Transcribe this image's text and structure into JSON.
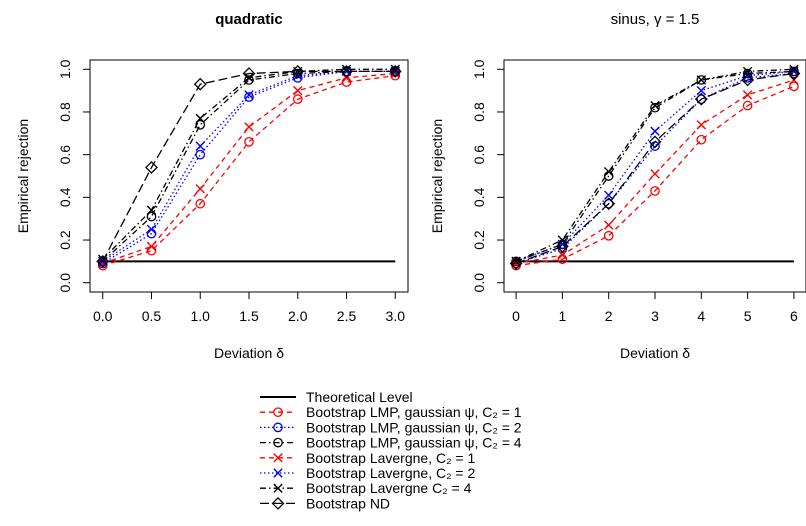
{
  "chart_data": [
    {
      "type": "line",
      "title": "quadratic",
      "xlabel": "Deviation δ",
      "ylabel": "Empirical rejection",
      "xlim": [
        0,
        3
      ],
      "ylim": [
        0,
        1
      ],
      "xticks": [
        "0.0",
        "0.5",
        "1.0",
        "1.5",
        "2.0",
        "2.5",
        "3.0"
      ],
      "yticks": [
        "0.0",
        "0.2",
        "0.4",
        "0.6",
        "0.8",
        "1.0"
      ],
      "x": [
        0,
        0.5,
        1,
        1.5,
        2,
        2.5,
        3
      ],
      "series": [
        {
          "key": "theo",
          "values": [
            0.1,
            0.1,
            0.1,
            0.1,
            0.1,
            0.1,
            0.1
          ]
        },
        {
          "key": "lmp1",
          "values": [
            0.08,
            0.15,
            0.37,
            0.66,
            0.86,
            0.94,
            0.97
          ]
        },
        {
          "key": "lmp2",
          "values": [
            0.09,
            0.23,
            0.6,
            0.87,
            0.96,
            0.99,
            0.99
          ]
        },
        {
          "key": "lmp4",
          "values": [
            0.1,
            0.31,
            0.74,
            0.95,
            0.98,
            0.99,
            0.99
          ]
        },
        {
          "key": "lav1",
          "values": [
            0.09,
            0.17,
            0.44,
            0.73,
            0.9,
            0.96,
            0.98
          ]
        },
        {
          "key": "lav2",
          "values": [
            0.1,
            0.25,
            0.64,
            0.88,
            0.97,
            0.99,
            0.99
          ]
        },
        {
          "key": "lav4",
          "values": [
            0.11,
            0.34,
            0.77,
            0.96,
            0.99,
            1.0,
            1.0
          ]
        },
        {
          "key": "nd",
          "values": [
            0.1,
            0.54,
            0.93,
            0.98,
            0.99,
            0.99,
            0.99
          ]
        }
      ]
    },
    {
      "type": "line",
      "title": "sinus, γ = 1.5",
      "xlabel": "Deviation δ",
      "ylabel": "Empirical rejection",
      "xlim": [
        0,
        6
      ],
      "ylim": [
        0,
        1
      ],
      "xticks": [
        "0",
        "1",
        "2",
        "3",
        "4",
        "5",
        "6"
      ],
      "yticks": [
        "0.0",
        "0.2",
        "0.4",
        "0.6",
        "0.8",
        "1.0"
      ],
      "x": [
        0,
        1,
        2,
        3,
        4,
        5,
        6
      ],
      "series": [
        {
          "key": "theo",
          "values": [
            0.1,
            0.1,
            0.1,
            0.1,
            0.1,
            0.1,
            0.1
          ]
        },
        {
          "key": "lmp1",
          "values": [
            0.08,
            0.11,
            0.22,
            0.43,
            0.67,
            0.83,
            0.92
          ]
        },
        {
          "key": "lmp2",
          "values": [
            0.09,
            0.16,
            0.37,
            0.64,
            0.86,
            0.96,
            0.98
          ]
        },
        {
          "key": "lmp4",
          "values": [
            0.1,
            0.18,
            0.5,
            0.82,
            0.95,
            0.98,
            0.99
          ]
        },
        {
          "key": "lav1",
          "values": [
            0.09,
            0.13,
            0.27,
            0.51,
            0.74,
            0.88,
            0.95
          ]
        },
        {
          "key": "lav2",
          "values": [
            0.1,
            0.18,
            0.41,
            0.71,
            0.9,
            0.97,
            0.99
          ]
        },
        {
          "key": "lav4",
          "values": [
            0.1,
            0.2,
            0.52,
            0.83,
            0.95,
            0.99,
            1.0
          ]
        },
        {
          "key": "nd",
          "values": [
            0.09,
            0.17,
            0.37,
            0.66,
            0.86,
            0.95,
            0.98
          ]
        }
      ]
    }
  ],
  "legend": {
    "placement": "bottom-center",
    "items": [
      {
        "key": "theo",
        "label": "Theoretical Level",
        "color": "#000000",
        "dash": "",
        "marker": "none"
      },
      {
        "key": "lmp1",
        "label": "Bootstrap LMP, gaussian ψ, C₂ = 1",
        "color": "#ff0000",
        "dash": "5,4",
        "marker": "circle"
      },
      {
        "key": "lmp2",
        "label": "Bootstrap LMP, gaussian ψ, C₂ = 2",
        "color": "#0000ff",
        "dash": "1.5,2.5",
        "marker": "circle"
      },
      {
        "key": "lmp4",
        "label": "Bootstrap LMP, gaussian ψ, C₂ = 4",
        "color": "#000000",
        "dash": "6,3,1.5,3",
        "marker": "circle"
      },
      {
        "key": "lav1",
        "label": "Bootstrap Lavergne, C₂ = 1",
        "color": "#ff0000",
        "dash": "5,4",
        "marker": "cross"
      },
      {
        "key": "lav2",
        "label": "Bootstrap Lavergne, C₂ = 2",
        "color": "#0000ff",
        "dash": "1.5,2.5",
        "marker": "cross"
      },
      {
        "key": "lav4",
        "label": "Bootstrap Lavergne C₂ = 4",
        "color": "#000000",
        "dash": "6,3,1.5,3",
        "marker": "cross"
      },
      {
        "key": "nd",
        "label": "Bootstrap ND",
        "color": "#000000",
        "dash": "9,4",
        "marker": "diamond"
      }
    ]
  }
}
